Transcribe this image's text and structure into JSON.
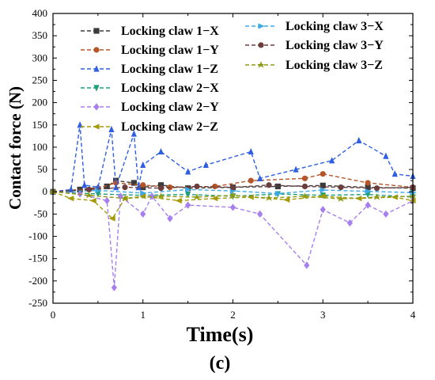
{
  "panel_label": "(c)",
  "colors": {
    "claw1_x": "#3b3b3b",
    "claw1_y": "#b5562a",
    "claw1_z": "#2f5fe0",
    "claw2_x": "#1f9e7a",
    "claw2_y": "#a77ef0",
    "claw2_z": "#a59a07",
    "claw3_x": "#3fa9e6",
    "claw3_y": "#6b3e3e",
    "claw3_z": "#8f9a12"
  },
  "chart_data": {
    "type": "line",
    "xlabel": "Time(s)",
    "ylabel": "Contact force  (N)",
    "xlim": [
      0,
      4
    ],
    "ylim": [
      -250,
      400
    ],
    "xticks": [
      "0",
      "1",
      "2",
      "3",
      "4"
    ],
    "yticks": [
      "400",
      "350",
      "300",
      "250",
      "200",
      "150",
      "100",
      "50",
      "0",
      "-50",
      "-100",
      "-150",
      "-200",
      "-250"
    ],
    "legend_position": "top",
    "series": [
      {
        "name": "Locking claw 1−X",
        "color_key": "claw1_x",
        "marker": "square",
        "x": [
          0,
          0.3,
          0.6,
          0.7,
          0.9,
          1.0,
          1.2,
          1.5,
          2.0,
          2.5,
          3.0,
          3.5,
          4.0
        ],
        "y": [
          0,
          5,
          12,
          25,
          20,
          10,
          15,
          8,
          10,
          12,
          14,
          10,
          8
        ]
      },
      {
        "name": "Locking claw 1−Y",
        "color_key": "claw1_y",
        "marker": "circle",
        "x": [
          0,
          0.5,
          0.7,
          1.0,
          1.3,
          1.8,
          2.2,
          2.8,
          3.0,
          3.5,
          4.0
        ],
        "y": [
          0,
          8,
          20,
          15,
          10,
          12,
          25,
          30,
          40,
          20,
          10
        ]
      },
      {
        "name": "Locking claw 1−Z",
        "color_key": "claw1_z",
        "marker": "triangle-up",
        "x": [
          0,
          0.2,
          0.3,
          0.35,
          0.5,
          0.65,
          0.7,
          0.9,
          0.95,
          1.0,
          1.2,
          1.5,
          1.7,
          2.2,
          2.3,
          2.7,
          3.1,
          3.4,
          3.7,
          3.8,
          4.0
        ],
        "y": [
          0,
          5,
          150,
          15,
          10,
          140,
          10,
          130,
          10,
          60,
          90,
          45,
          60,
          90,
          30,
          50,
          70,
          115,
          80,
          40,
          35
        ]
      },
      {
        "name": "Locking claw 2−X",
        "color_key": "claw2_x",
        "marker": "triangle-down",
        "x": [
          0,
          0.5,
          1.0,
          1.5,
          2.0,
          2.5,
          3.0,
          3.5,
          4.0
        ],
        "y": [
          0,
          -5,
          -8,
          -6,
          -10,
          -5,
          -8,
          -6,
          -12
        ]
      },
      {
        "name": "Locking claw 2−Y",
        "color_key": "claw2_y",
        "marker": "diamond",
        "x": [
          0,
          0.3,
          0.6,
          0.68,
          0.75,
          1.0,
          1.1,
          1.3,
          1.5,
          2.0,
          2.3,
          2.82,
          3.0,
          3.3,
          3.5,
          3.7,
          4.0
        ],
        "y": [
          0,
          -5,
          -20,
          -215,
          -10,
          -50,
          -10,
          -60,
          -30,
          -35,
          -50,
          -165,
          -40,
          -70,
          -30,
          -50,
          -20
        ]
      },
      {
        "name": "Locking claw 2−Z",
        "color_key": "claw2_z",
        "marker": "triangle-left",
        "x": [
          0,
          0.2,
          0.45,
          0.66,
          0.8,
          1.0,
          1.4,
          1.8,
          2.2,
          2.6,
          3.0,
          3.4,
          3.8,
          4.0
        ],
        "y": [
          0,
          -15,
          -20,
          -60,
          -15,
          -10,
          -20,
          -15,
          -12,
          -18,
          -10,
          -15,
          -12,
          -20
        ]
      },
      {
        "name": "Locking claw 3−X",
        "color_key": "claw3_x",
        "marker": "triangle-right",
        "x": [
          0,
          0.5,
          1.0,
          1.5,
          2.0,
          2.5,
          3.0,
          3.5,
          4.0
        ],
        "y": [
          0,
          3,
          -3,
          5,
          2,
          -4,
          4,
          1,
          -2
        ]
      },
      {
        "name": "Locking claw 3−Y",
        "color_key": "claw3_y",
        "marker": "hexagon",
        "x": [
          0,
          0.4,
          0.8,
          1.2,
          1.6,
          2.0,
          2.4,
          2.8,
          3.2,
          3.6,
          4.0
        ],
        "y": [
          0,
          5,
          10,
          8,
          12,
          10,
          15,
          12,
          10,
          8,
          10
        ]
      },
      {
        "name": "Locking claw 3−Z",
        "color_key": "claw3_z",
        "marker": "star",
        "x": [
          0,
          0.4,
          0.8,
          1.2,
          1.6,
          2.0,
          2.4,
          2.8,
          3.2,
          3.6,
          4.0
        ],
        "y": [
          0,
          -8,
          -15,
          -10,
          -12,
          -8,
          -14,
          -10,
          -16,
          -12,
          -10
        ]
      }
    ]
  }
}
